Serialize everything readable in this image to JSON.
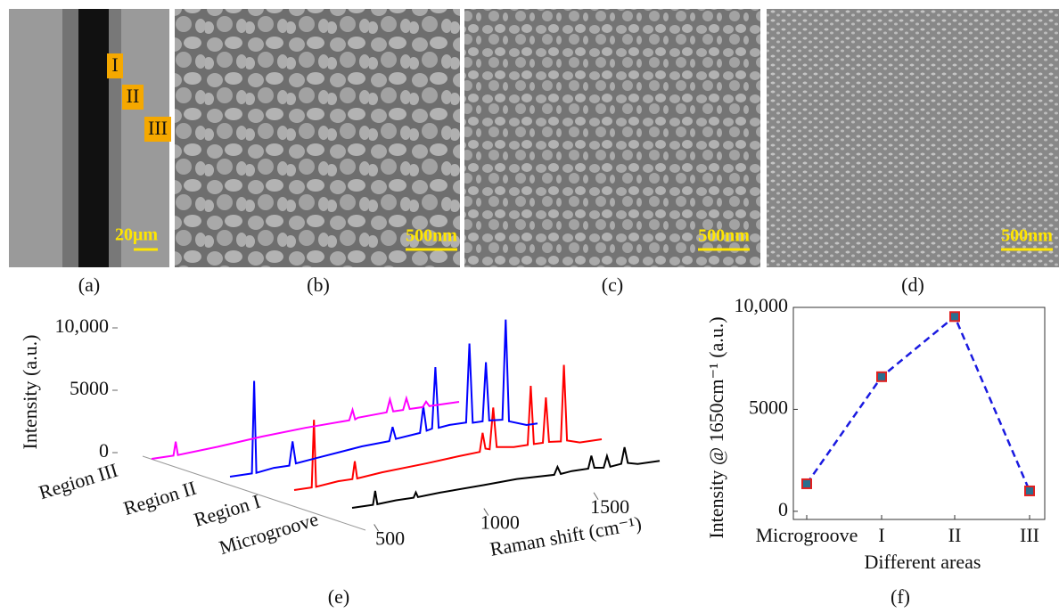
{
  "figure": {
    "panels": [
      {
        "label": "(a)",
        "scale_bar": "20μm",
        "regions": [
          "I",
          "II",
          "III"
        ]
      },
      {
        "label": "(b)",
        "scale_bar": "500nm"
      },
      {
        "label": "(c)",
        "scale_bar": "500nm"
      },
      {
        "label": "(d)",
        "scale_bar": "500nm"
      }
    ]
  },
  "chart_data": [
    {
      "type": "waterfall",
      "panel_label": "(e)",
      "y_label": "Intensity (a.u.)",
      "x_label": "Raman shift (cm⁻¹)",
      "xlim": [
        400,
        1800
      ],
      "xticks": [
        500,
        1000,
        1500
      ],
      "ylim": [
        0,
        10000
      ],
      "yticks": [
        0,
        5000,
        {
          "value": 10000,
          "label": "10,000"
        }
      ],
      "series": [
        {
          "name": "Microgroove",
          "color": "#000000",
          "x": [
            400,
            495,
            505,
            515,
            600,
            680,
            690,
            700,
            800,
            1000,
            1150,
            1320,
            1335,
            1350,
            1400,
            1475,
            1489,
            1503,
            1545,
            1560,
            1575,
            1625,
            1640,
            1655,
            1700,
            1800
          ],
          "values": [
            0,
            0,
            1100,
            0,
            100,
            100,
            500,
            100,
            200,
            300,
            400,
            300,
            900,
            300,
            400,
            400,
            1400,
            400,
            300,
            1200,
            300,
            400,
            1700,
            400,
            200,
            200
          ]
        },
        {
          "name": "Region I",
          "color": "#ff0000",
          "x": [
            400,
            480,
            490,
            500,
            600,
            665,
            676,
            687,
            800,
            1000,
            1150,
            1245,
            1258,
            1271,
            1290,
            1306,
            1322,
            1400,
            1463,
            1477,
            1491,
            1532,
            1546,
            1560,
            1614,
            1628,
            1642,
            1700,
            1800
          ],
          "values": [
            0,
            0,
            5400,
            0,
            200,
            200,
            1600,
            200,
            400,
            600,
            800,
            900,
            2400,
            1100,
            1000,
            4300,
            1100,
            900,
            900,
            5600,
            900,
            900,
            4500,
            900,
            800,
            6900,
            800,
            500,
            500
          ]
        },
        {
          "name": "Region II",
          "color": "#0000ff",
          "x": [
            400,
            500,
            510,
            520,
            600,
            670,
            685,
            700,
            800,
            1000,
            1125,
            1140,
            1155,
            1265,
            1280,
            1295,
            1320,
            1335,
            1350,
            1400,
            1475,
            1490,
            1505,
            1550,
            1565,
            1580,
            1640,
            1655,
            1670,
            1750,
            1800
          ],
          "values": [
            0,
            0,
            7400,
            0,
            200,
            200,
            2100,
            300,
            500,
            900,
            1000,
            2100,
            1100,
            1300,
            3400,
            1400,
            1500,
            6400,
            1500,
            1600,
            1600,
            7900,
            1500,
            1500,
            6200,
            1500,
            1400,
            9400,
            1200,
            700,
            700
          ]
        },
        {
          "name": "Region III",
          "color": "#ff00ff",
          "x": [
            400,
            500,
            510,
            520,
            700,
            900,
            1100,
            1300,
            1315,
            1327,
            1340,
            1470,
            1485,
            1500,
            1545,
            1560,
            1575,
            1635,
            1650,
            1665,
            1750,
            1800
          ],
          "values": [
            0,
            0,
            1100,
            0,
            200,
            500,
            700,
            800,
            1600,
            800,
            900,
            1000,
            2000,
            1000,
            1000,
            1900,
            1000,
            1000,
            1400,
            1000,
            1000,
            1000
          ]
        }
      ]
    },
    {
      "type": "line",
      "panel_label": "(f)",
      "x_label": "Different areas",
      "y_label": "Intensity @ 1650cm⁻¹ (a.u.)",
      "categories": [
        "Microgroove",
        "I",
        "II",
        "III"
      ],
      "values": [
        1350,
        6600,
        9550,
        1000
      ],
      "ylim": [
        -400,
        10000
      ],
      "yticks": [
        0,
        5000,
        {
          "value": 10000,
          "label": "10,000"
        }
      ],
      "color": "#1a1ae0",
      "marker_edge": "#e02020",
      "marker_fill": "#2a6f8f",
      "line_style": "dashed"
    }
  ]
}
